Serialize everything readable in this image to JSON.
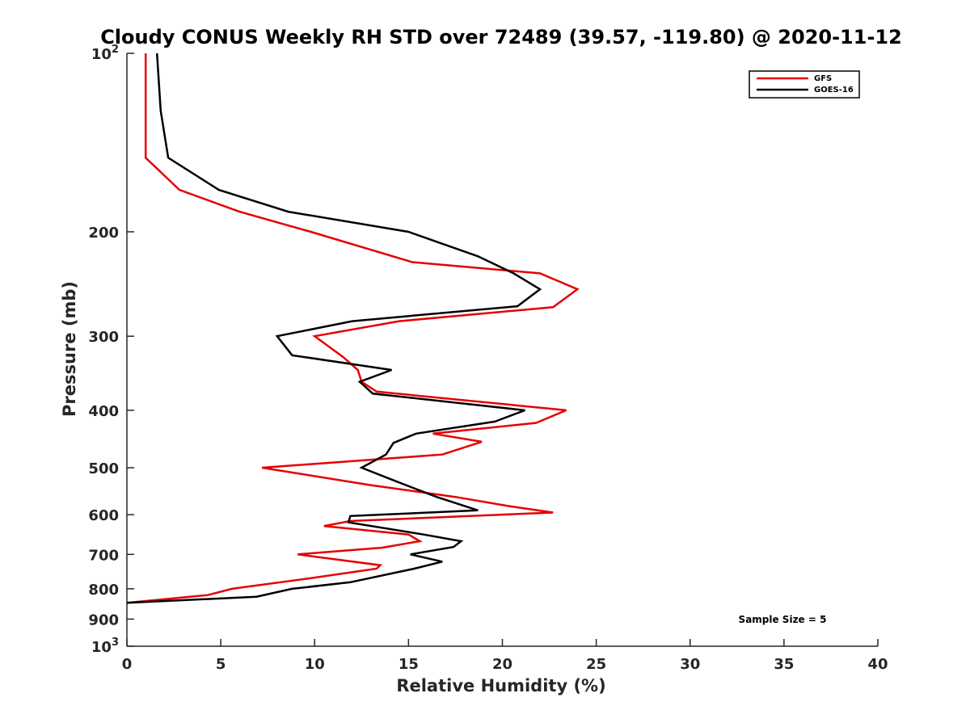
{
  "chart_data": {
    "type": "line",
    "title": "Cloudy CONUS Weekly RH STD over 72489 (39.57, -119.80) @ 2020-11-12",
    "xlabel": "Relative Humidity (%)",
    "ylabel": "Pressure (mb)",
    "xlim": [
      0,
      40
    ],
    "ylim": [
      100,
      1000
    ],
    "y_scale": "log",
    "y_reversed": true,
    "grid": false,
    "legend_position": "top-right",
    "x_ticks": [
      "0",
      "5",
      "10",
      "15",
      "20",
      "25",
      "30",
      "35",
      "40"
    ],
    "y_ticks": [
      {
        "value": 100,
        "base": "10",
        "exp": "2"
      },
      {
        "value": 200,
        "label": "200"
      },
      {
        "value": 300,
        "label": "300"
      },
      {
        "value": 400,
        "label": "400"
      },
      {
        "value": 500,
        "label": "500"
      },
      {
        "value": 600,
        "label": "600"
      },
      {
        "value": 700,
        "label": "700"
      },
      {
        "value": 800,
        "label": "800"
      },
      {
        "value": 900,
        "label": "900"
      },
      {
        "value": 1000,
        "base": "10",
        "exp": "3"
      }
    ],
    "series": [
      {
        "name": "GFS",
        "color": "#e60000",
        "points": [
          [
            1.0,
            100
          ],
          [
            1.0,
            125
          ],
          [
            1.0,
            150
          ],
          [
            2.8,
            170
          ],
          [
            6.0,
            185
          ],
          [
            9.8,
            200
          ],
          [
            15.2,
            225
          ],
          [
            22.0,
            235
          ],
          [
            24.0,
            250
          ],
          [
            22.7,
            268
          ],
          [
            14.5,
            283
          ],
          [
            10.0,
            300
          ],
          [
            11.5,
            325
          ],
          [
            12.3,
            342
          ],
          [
            12.5,
            358
          ],
          [
            13.3,
            372
          ],
          [
            23.4,
            400
          ],
          [
            21.8,
            420
          ],
          [
            16.3,
            438
          ],
          [
            18.9,
            452
          ],
          [
            16.8,
            475
          ],
          [
            7.2,
            500
          ],
          [
            13.0,
            535
          ],
          [
            17.5,
            560
          ],
          [
            20.3,
            580
          ],
          [
            22.7,
            595
          ],
          [
            11.9,
            615
          ],
          [
            10.5,
            627
          ],
          [
            15.0,
            648
          ],
          [
            15.6,
            665
          ],
          [
            13.6,
            682
          ],
          [
            9.1,
            700
          ],
          [
            13.5,
            730
          ],
          [
            13.3,
            740
          ],
          [
            9.5,
            770
          ],
          [
            5.6,
            800
          ],
          [
            4.3,
            820
          ],
          [
            0.0,
            845
          ]
        ]
      },
      {
        "name": "GOES-16",
        "color": "#000000",
        "points": [
          [
            1.6,
            100
          ],
          [
            1.8,
            125
          ],
          [
            2.2,
            150
          ],
          [
            4.9,
            170
          ],
          [
            8.6,
            185
          ],
          [
            15.0,
            200
          ],
          [
            18.7,
            220
          ],
          [
            20.6,
            235
          ],
          [
            22.0,
            250
          ],
          [
            20.8,
            267
          ],
          [
            12.0,
            283
          ],
          [
            8.0,
            300
          ],
          [
            8.8,
            323
          ],
          [
            14.1,
            342
          ],
          [
            12.4,
            358
          ],
          [
            13.1,
            375
          ],
          [
            21.2,
            400
          ],
          [
            19.6,
            418
          ],
          [
            15.4,
            438
          ],
          [
            14.2,
            454
          ],
          [
            13.8,
            475
          ],
          [
            12.5,
            500
          ],
          [
            14.2,
            525
          ],
          [
            16.5,
            560
          ],
          [
            18.7,
            590
          ],
          [
            11.9,
            603
          ],
          [
            11.8,
            618
          ],
          [
            15.8,
            648
          ],
          [
            17.8,
            665
          ],
          [
            17.4,
            680
          ],
          [
            15.1,
            700
          ],
          [
            16.8,
            720
          ],
          [
            15.3,
            740
          ],
          [
            11.9,
            780
          ],
          [
            8.8,
            800
          ],
          [
            6.9,
            825
          ],
          [
            0.0,
            845
          ]
        ]
      }
    ],
    "annotation": "Sample Size = 5"
  }
}
